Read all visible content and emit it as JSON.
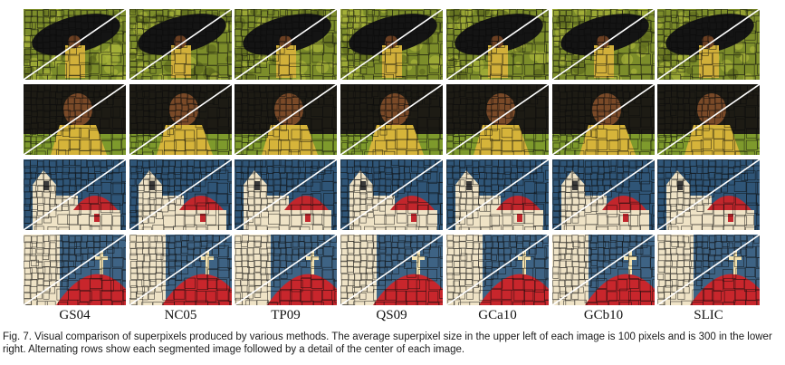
{
  "figure": {
    "methods": [
      "GS04",
      "NC05",
      "TP09",
      "QS09",
      "GCa10",
      "GCb10",
      "SLIC"
    ],
    "row_themes": [
      "umbrella-wide",
      "umbrella-detail",
      "church-wide",
      "church-detail"
    ],
    "caption": "Fig. 7. Visual comparison of superpixels produced by various methods. The average superpixel size in the upper left of each image is 100 pixels and is 300 in the lower right. Alternating rows show each segmented image followed by a detail of the center of each image."
  }
}
